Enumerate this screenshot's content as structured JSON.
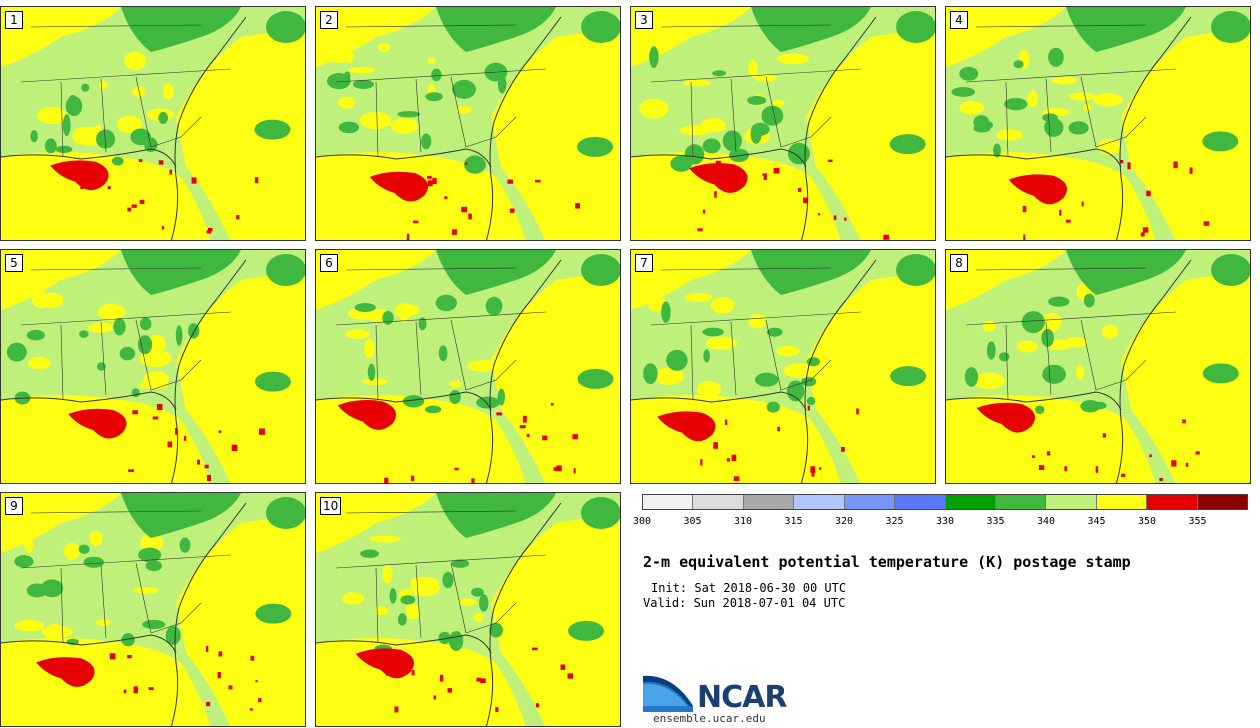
{
  "panels": [
    {
      "label": "1"
    },
    {
      "label": "2"
    },
    {
      "label": "3"
    },
    {
      "label": "4"
    },
    {
      "label": "5"
    },
    {
      "label": "6"
    },
    {
      "label": "7"
    },
    {
      "label": "8"
    },
    {
      "label": "9"
    },
    {
      "label": "10"
    }
  ],
  "colorbar": {
    "ticks": [
      "300",
      "305",
      "310",
      "315",
      "320",
      "325",
      "330",
      "335",
      "340",
      "345",
      "350",
      "355"
    ],
    "colors": [
      "#f2f2f2",
      "#dcdcdc",
      "#a8a8a8",
      "#b0c8ff",
      "#7896ff",
      "#5a78ff",
      "#00a000",
      "#40b840",
      "#bef07a",
      "#ffff14",
      "#e60000",
      "#8c0000"
    ]
  },
  "title": "2-m equivalent potential temperature (K) postage stamp",
  "init": "Init: Sat 2018-06-30 00 UTC",
  "valid": "Valid: Sun 2018-07-01 04 UTC",
  "logo": {
    "wordmark": "NCAR",
    "url": "ensemble.ucar.edu"
  },
  "map_colors": {
    "land_base": "#bef07a",
    "warm": "#ffff14",
    "cool": "#40b840",
    "hot": "#e60000",
    "border": "#333333"
  }
}
